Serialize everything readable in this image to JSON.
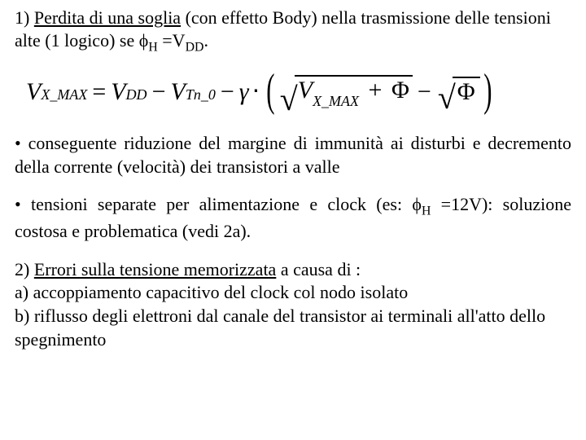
{
  "para1": {
    "lead": "1) ",
    "underlined": "Perdita di una soglia",
    "rest1": " (con effetto Body) nella trasmissione delle tensioni alte (1 logico) se  ",
    "phi": "ϕ",
    "phiSub": "H",
    "eq": " =V",
    "vddSub": "DD",
    "end": "."
  },
  "equation": {
    "V": "V",
    "xmax": "X_MAX",
    "eq": "=",
    "DD": "DD",
    "minus": "−",
    "Tn0": "Tn_0",
    "gamma": "γ",
    "dot": "⋅",
    "plus": "+",
    "Phi": "Φ"
  },
  "bullet1": {
    "text": "• conseguente riduzione del margine di immunità ai disturbi  e decremento della corrente (velocità) dei transistori a valle"
  },
  "bullet2": {
    "pre": "• tensioni separate per alimentazione e clock (es: ",
    "phi": "ϕ",
    "phiSub": "H",
    "mid": " =12V): soluzione costosa e problematica (vedi 2a)."
  },
  "para2": {
    "lead": "2) ",
    "underlined": "Errori sulla tensione memorizzata",
    "rest": " a causa di :",
    "a": "a) accoppiamento capacitivo del clock col nodo isolato",
    "b": "b) riflusso degli elettroni dal canale del transistor ai terminali all'atto dello spegnimento"
  }
}
